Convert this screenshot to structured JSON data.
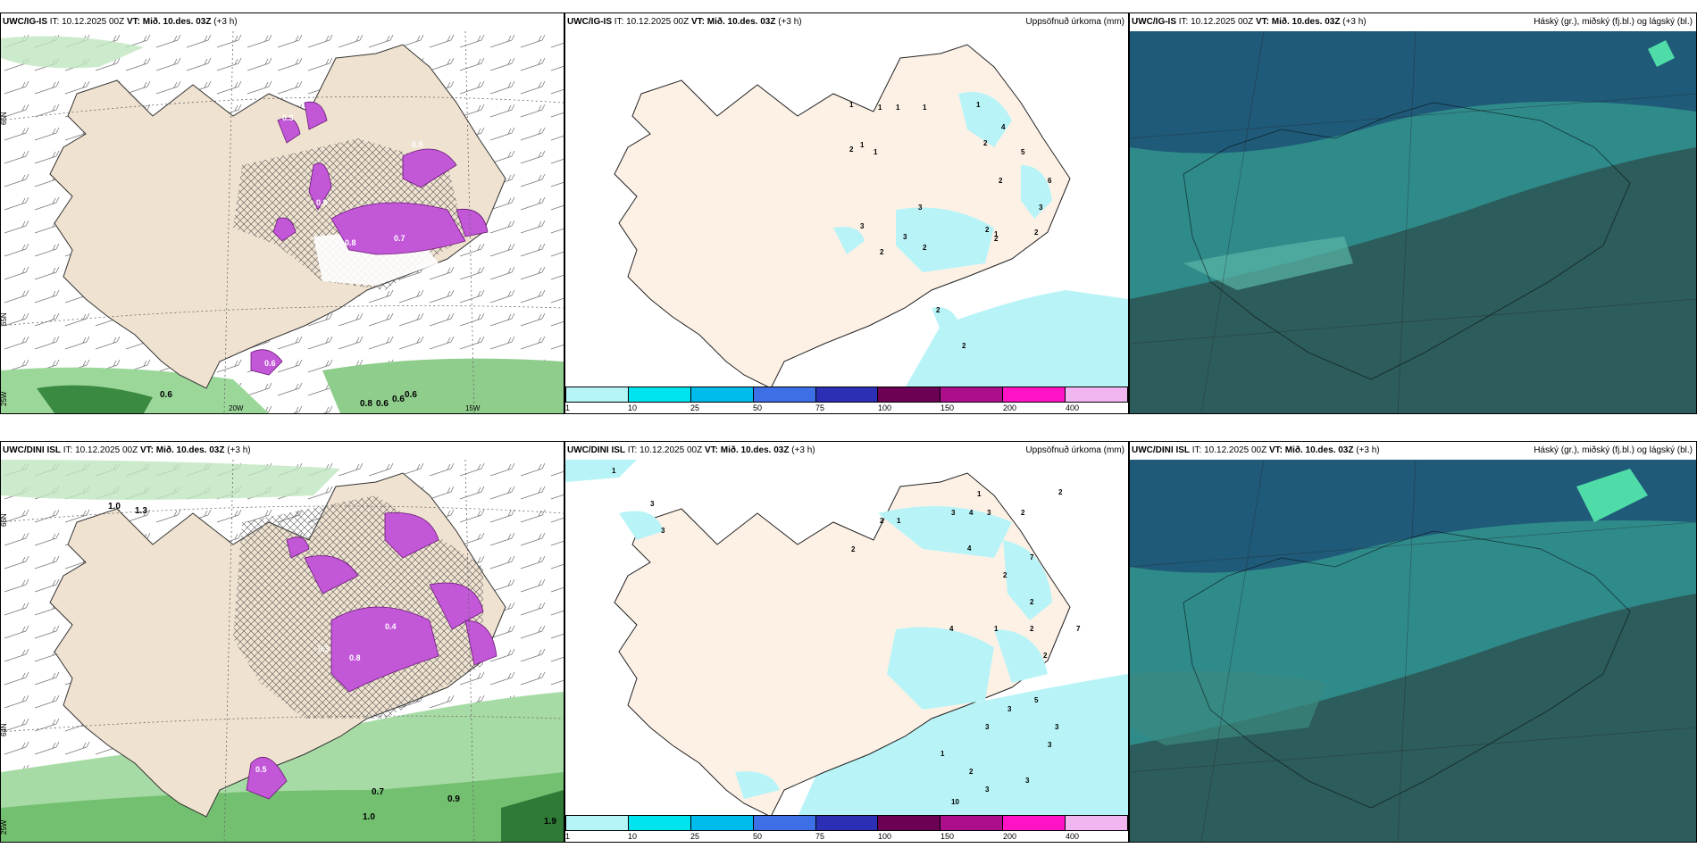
{
  "panels": [
    {
      "model": "UWC/IG-IS",
      "it": "IT: 10.12.2025 00Z",
      "vt_label": "VT:",
      "vt": "Mið. 10.des. 03Z",
      "lead": "(+3 h)",
      "right": ""
    },
    {
      "model": "UWC/IG-IS",
      "it": "IT: 10.12.2025 00Z",
      "vt_label": "VT:",
      "vt": "Mið. 10.des. 03Z",
      "lead": "(+3 h)",
      "right": "Uppsöfnuð úrkoma (mm)"
    },
    {
      "model": "UWC/IG-IS",
      "it": "IT: 10.12.2025 00Z",
      "vt_label": "VT:",
      "vt": "Mið. 10.des. 03Z",
      "lead": "(+3 h)",
      "right": "Háský (gr.), miðský (fj.bl.) og lágský (bl.)"
    },
    {
      "model": "UWC/DINI ISL",
      "it": "IT: 10.12.2025 00Z",
      "vt_label": "VT:",
      "vt": "Mið. 10.des. 03Z",
      "lead": "(+3 h)",
      "right": ""
    },
    {
      "model": "UWC/DINI ISL",
      "it": "IT: 10.12.2025 00Z",
      "vt_label": "VT:",
      "vt": "Mið. 10.des. 03Z",
      "lead": "(+3 h)",
      "right": "Uppsöfnuð úrkoma (mm)"
    },
    {
      "model": "UWC/DINI ISL",
      "it": "IT: 10.12.2025 00Z",
      "vt_label": "VT:",
      "vt": "Mið. 10.des. 03Z",
      "lead": "(+3 h)",
      "right": "Háský (gr.), miðský (fj.bl.) og lágský (bl.)"
    }
  ],
  "grid_labels": {
    "lat66": "66N",
    "lat64": "64N",
    "lat65": "65N",
    "lon20": "20W",
    "lon15": "15W",
    "lon25": "25W"
  },
  "colorbar": {
    "ticks": [
      "1",
      "10",
      "25",
      "50",
      "75",
      "100",
      "150",
      "200",
      "400"
    ],
    "colors": [
      "#b5f5f7",
      "#00e4ef",
      "#00bcec",
      "#3d6fe6",
      "#2b2fb5",
      "#6b0055",
      "#ad0f8c",
      "#ff13c4",
      "#f1b6f0"
    ]
  },
  "colors": {
    "land": "#efe2d0",
    "land_precip": "#fdf1e6",
    "precip": "#b8f4f7",
    "sea_green": "#bfe6bf",
    "snow": "#c257d8",
    "cloud_dark": "#2d5a5a",
    "cloud_mid": "#2f8a8a"
  },
  "wind_panel_top_values": [
    "0.6",
    "0.8",
    "0.6",
    "0.6",
    "0.6",
    "0.5",
    "0.9",
    "0.3",
    "0.8",
    "0.7",
    "0.6"
  ],
  "wind_panel_bottom_values": [
    "1.0",
    "1.3",
    "0.7",
    "0.9",
    "1.0",
    "1.9",
    "0.5",
    "0.8",
    "0.4",
    "0.3"
  ],
  "precip_top_values": [
    "1",
    "1",
    "1",
    "1",
    "1",
    "2",
    "1",
    "1",
    "4",
    "2",
    "5",
    "2",
    "6",
    "3",
    "3",
    "2",
    "2",
    "3",
    "3",
    "1",
    "2",
    "2",
    "2",
    "2",
    "2"
  ],
  "precip_bottom_values": [
    "1",
    "3",
    "3",
    "2",
    "1",
    "2",
    "2",
    "1",
    "3",
    "4",
    "3",
    "2",
    "7",
    "2",
    "4",
    "2",
    "4",
    "1",
    "2",
    "7",
    "2",
    "3",
    "5",
    "3",
    "3",
    "3",
    "1",
    "10",
    "2",
    "3",
    "3",
    "1"
  ]
}
